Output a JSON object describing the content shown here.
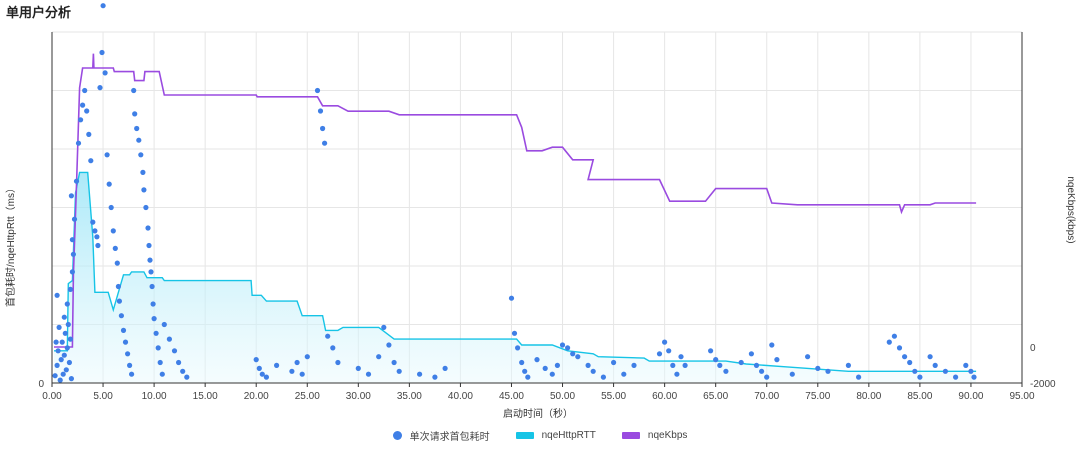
{
  "page": {
    "title": "单用户分析"
  },
  "colors": {
    "scatter": "#3f7fe6",
    "rtt": "#16c4e6",
    "kbps": "#9a4be0"
  },
  "chart_data": {
    "type": "line",
    "xlabel": "启动时间（秒）",
    "ylabel_left": "首包耗时/nqeHttpRtt（ms）",
    "ylabel_right": "nqeKbps(kbps)",
    "xlim": [
      0,
      95
    ],
    "x_ticks": [
      "0.00",
      "5.00",
      "10.00",
      "15.00",
      "20.00",
      "25.00",
      "30.00",
      "35.00",
      "40.00",
      "45.00",
      "50.00",
      "55.00",
      "60.00",
      "65.00",
      "70.00",
      "75.00",
      "80.00",
      "85.00",
      "90.00",
      "95.00"
    ],
    "ylim_left": [
      0,
      1200
    ],
    "y_ticks_left": [
      "0"
    ],
    "ylim_right": [
      -2000,
      17500
    ],
    "y_ticks_right": [
      "0",
      "-2000"
    ],
    "legend_position": "bottom",
    "legend": [
      "单次请求首包耗时",
      "nqeHttpRTT",
      "nqeKbps"
    ],
    "series": [
      {
        "name": "nqeKbps",
        "type": "line",
        "points": [
          [
            0.2,
            0
          ],
          [
            2.0,
            0
          ],
          [
            2.1,
            4000
          ],
          [
            2.4,
            9000
          ],
          [
            2.7,
            14400
          ],
          [
            3.0,
            15500
          ],
          [
            4.0,
            15500
          ],
          [
            4.05,
            16300
          ],
          [
            4.1,
            15500
          ],
          [
            6.0,
            15500
          ],
          [
            6.1,
            15300
          ],
          [
            8.0,
            15300
          ],
          [
            8.1,
            14800
          ],
          [
            9.0,
            14800
          ],
          [
            9.1,
            15300
          ],
          [
            10.5,
            15300
          ],
          [
            11.0,
            14000
          ],
          [
            20.0,
            14000
          ],
          [
            20.1,
            13900
          ],
          [
            26.0,
            13900
          ],
          [
            26.5,
            13400
          ],
          [
            28.0,
            13400
          ],
          [
            29.0,
            13100
          ],
          [
            33.0,
            13100
          ],
          [
            34.0,
            12900
          ],
          [
            45.5,
            12900
          ],
          [
            46.0,
            12200
          ],
          [
            46.5,
            10900
          ],
          [
            48.0,
            10900
          ],
          [
            49.0,
            11100
          ],
          [
            50.0,
            11100
          ],
          [
            51.0,
            10400
          ],
          [
            53.0,
            10400
          ],
          [
            52.5,
            9300
          ],
          [
            59.5,
            9300
          ],
          [
            60.5,
            8100
          ],
          [
            64.0,
            8100
          ],
          [
            65.0,
            8800
          ],
          [
            70.0,
            8800
          ],
          [
            70.5,
            8000
          ],
          [
            73.0,
            7900
          ],
          [
            83.0,
            7900
          ],
          [
            83.2,
            7500
          ],
          [
            83.5,
            7900
          ],
          [
            86.0,
            7900
          ],
          [
            86.5,
            8000
          ],
          [
            90.5,
            8000
          ]
        ]
      },
      {
        "name": "nqeHttpRTT",
        "type": "area",
        "points": [
          [
            0.2,
            110
          ],
          [
            1.5,
            110
          ],
          [
            1.6,
            340
          ],
          [
            2.0,
            350
          ],
          [
            2.3,
            650
          ],
          [
            2.7,
            720
          ],
          [
            3.5,
            720
          ],
          [
            4.0,
            500
          ],
          [
            4.2,
            310
          ],
          [
            5.5,
            310
          ],
          [
            6.0,
            250
          ],
          [
            6.5,
            310
          ],
          [
            7.0,
            370
          ],
          [
            7.6,
            370
          ],
          [
            7.8,
            380
          ],
          [
            9.0,
            380
          ],
          [
            9.3,
            360
          ],
          [
            10.8,
            360
          ],
          [
            11.0,
            350
          ],
          [
            19.5,
            350
          ],
          [
            19.6,
            300
          ],
          [
            20.5,
            300
          ],
          [
            21.0,
            280
          ],
          [
            24.0,
            280
          ],
          [
            24.5,
            230
          ],
          [
            26.5,
            230
          ],
          [
            26.8,
            180
          ],
          [
            28.0,
            180
          ],
          [
            28.5,
            190
          ],
          [
            32.0,
            190
          ],
          [
            33.5,
            150
          ],
          [
            45.5,
            150
          ],
          [
            46.0,
            130
          ],
          [
            49.0,
            130
          ],
          [
            50.5,
            110
          ],
          [
            53.0,
            100
          ],
          [
            53.5,
            90
          ],
          [
            58.0,
            85
          ],
          [
            58.5,
            75
          ],
          [
            66.0,
            75
          ],
          [
            68.0,
            65
          ],
          [
            72.0,
            55
          ],
          [
            78.0,
            40
          ],
          [
            84.5,
            40
          ],
          [
            85.0,
            40
          ],
          [
            90.5,
            40
          ]
        ]
      },
      {
        "name": "单次请求首包耗时",
        "type": "scatter",
        "points": [
          [
            0.3,
            25
          ],
          [
            0.5,
            60
          ],
          [
            0.6,
            110
          ],
          [
            0.8,
            10
          ],
          [
            0.9,
            80
          ],
          [
            1.0,
            140
          ],
          [
            1.1,
            30
          ],
          [
            1.2,
            95
          ],
          [
            1.3,
            170
          ],
          [
            1.4,
            45
          ],
          [
            1.5,
            120
          ],
          [
            1.6,
            200
          ],
          [
            1.7,
            70
          ],
          [
            1.8,
            150
          ],
          [
            1.9,
            15
          ],
          [
            0.4,
            140
          ],
          [
            0.7,
            190
          ],
          [
            1.2,
            225
          ],
          [
            0.5,
            300
          ],
          [
            1.8,
            320
          ],
          [
            1.9,
            640
          ],
          [
            1.5,
            270
          ],
          [
            2.0,
            380
          ],
          [
            2.1,
            440
          ],
          [
            2.0,
            490
          ],
          [
            2.2,
            560
          ],
          [
            2.4,
            690
          ],
          [
            2.6,
            820
          ],
          [
            2.8,
            900
          ],
          [
            3.0,
            950
          ],
          [
            3.2,
            1000
          ],
          [
            3.4,
            930
          ],
          [
            3.6,
            850
          ],
          [
            3.8,
            760
          ],
          [
            4.0,
            550
          ],
          [
            4.2,
            520
          ],
          [
            4.4,
            500
          ],
          [
            4.5,
            470
          ],
          [
            4.7,
            1010
          ],
          [
            4.9,
            1130
          ],
          [
            5.0,
            1290
          ],
          [
            5.2,
            1060
          ],
          [
            5.4,
            780
          ],
          [
            5.6,
            680
          ],
          [
            5.8,
            600
          ],
          [
            6.0,
            520
          ],
          [
            6.2,
            460
          ],
          [
            6.4,
            410
          ],
          [
            6.5,
            330
          ],
          [
            6.6,
            280
          ],
          [
            6.8,
            230
          ],
          [
            7.0,
            180
          ],
          [
            7.2,
            140
          ],
          [
            7.4,
            100
          ],
          [
            7.6,
            60
          ],
          [
            7.8,
            30
          ],
          [
            8.0,
            1000
          ],
          [
            8.1,
            920
          ],
          [
            8.3,
            870
          ],
          [
            8.5,
            830
          ],
          [
            8.7,
            780
          ],
          [
            8.9,
            720
          ],
          [
            9.0,
            660
          ],
          [
            9.2,
            600
          ],
          [
            9.4,
            530
          ],
          [
            9.5,
            470
          ],
          [
            9.6,
            420
          ],
          [
            9.7,
            380
          ],
          [
            9.8,
            330
          ],
          [
            9.9,
            270
          ],
          [
            10.0,
            220
          ],
          [
            10.2,
            170
          ],
          [
            10.4,
            120
          ],
          [
            10.6,
            70
          ],
          [
            10.8,
            30
          ],
          [
            11.0,
            200
          ],
          [
            11.5,
            150
          ],
          [
            12.0,
            110
          ],
          [
            12.4,
            70
          ],
          [
            12.8,
            40
          ],
          [
            13.2,
            20
          ],
          [
            20.0,
            80
          ],
          [
            20.3,
            50
          ],
          [
            20.6,
            30
          ],
          [
            21.0,
            20
          ],
          [
            22.0,
            60
          ],
          [
            23.5,
            40
          ],
          [
            24.0,
            70
          ],
          [
            24.5,
            30
          ],
          [
            25.0,
            90
          ],
          [
            26.0,
            1000
          ],
          [
            26.3,
            930
          ],
          [
            26.5,
            870
          ],
          [
            26.7,
            820
          ],
          [
            27.0,
            160
          ],
          [
            27.5,
            120
          ],
          [
            28.0,
            70
          ],
          [
            30.0,
            50
          ],
          [
            31.0,
            30
          ],
          [
            32.0,
            90
          ],
          [
            32.5,
            190
          ],
          [
            33.0,
            130
          ],
          [
            33.5,
            70
          ],
          [
            34.0,
            40
          ],
          [
            36.0,
            30
          ],
          [
            37.5,
            20
          ],
          [
            38.5,
            50
          ],
          [
            45.0,
            290
          ],
          [
            45.3,
            170
          ],
          [
            45.6,
            120
          ],
          [
            46.0,
            70
          ],
          [
            46.3,
            40
          ],
          [
            46.6,
            20
          ],
          [
            47.5,
            80
          ],
          [
            48.3,
            50
          ],
          [
            49.0,
            30
          ],
          [
            49.5,
            60
          ],
          [
            50.0,
            130
          ],
          [
            50.5,
            120
          ],
          [
            51.0,
            100
          ],
          [
            51.5,
            90
          ],
          [
            52.5,
            60
          ],
          [
            53.0,
            40
          ],
          [
            54.0,
            20
          ],
          [
            55.0,
            70
          ],
          [
            56.0,
            30
          ],
          [
            57.0,
            60
          ],
          [
            59.5,
            100
          ],
          [
            60.0,
            140
          ],
          [
            60.4,
            110
          ],
          [
            60.8,
            60
          ],
          [
            61.2,
            30
          ],
          [
            61.6,
            90
          ],
          [
            62.0,
            60
          ],
          [
            64.5,
            110
          ],
          [
            65.0,
            80
          ],
          [
            65.4,
            60
          ],
          [
            66.0,
            40
          ],
          [
            67.5,
            70
          ],
          [
            68.5,
            100
          ],
          [
            69.0,
            60
          ],
          [
            69.5,
            40
          ],
          [
            70.0,
            20
          ],
          [
            70.5,
            130
          ],
          [
            71.0,
            80
          ],
          [
            72.5,
            30
          ],
          [
            74.0,
            90
          ],
          [
            75.0,
            50
          ],
          [
            76.0,
            40
          ],
          [
            78.0,
            60
          ],
          [
            79.0,
            20
          ],
          [
            82.0,
            140
          ],
          [
            82.5,
            160
          ],
          [
            83.0,
            120
          ],
          [
            83.5,
            90
          ],
          [
            84.0,
            70
          ],
          [
            84.5,
            40
          ],
          [
            85.0,
            20
          ],
          [
            86.0,
            90
          ],
          [
            86.5,
            60
          ],
          [
            87.5,
            40
          ],
          [
            88.5,
            20
          ],
          [
            89.5,
            60
          ],
          [
            90.0,
            40
          ],
          [
            90.3,
            20
          ]
        ]
      }
    ]
  }
}
